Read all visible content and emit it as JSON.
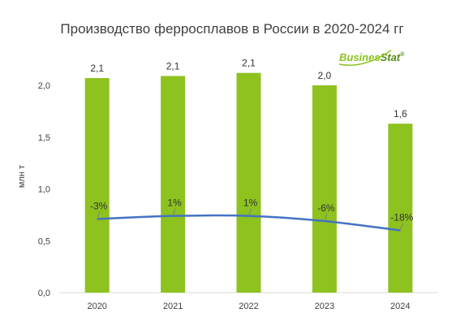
{
  "chart_data": {
    "type": "bar",
    "title": "Производство ферросплавов в России в 2020-2024 гг",
    "ylabel": "млн т",
    "xlabel": "",
    "ylim": [
      0,
      2.4
    ],
    "yticks": [
      "0,0",
      "0,5",
      "1,0",
      "1,5",
      "2,0"
    ],
    "categories": [
      "2020",
      "2021",
      "2022",
      "2023",
      "2024"
    ],
    "values": [
      2.07,
      2.09,
      2.12,
      2.0,
      1.63
    ],
    "value_labels": [
      "2,1",
      "2,1",
      "2,1",
      "2,0",
      "1,6"
    ],
    "growth_line": {
      "values": [
        0.71,
        0.74,
        0.74,
        0.69,
        0.6
      ],
      "labels": [
        "-3%",
        "1%",
        "1%",
        "-6%",
        "-18%"
      ]
    },
    "grid": false,
    "legend": "none"
  },
  "brand": {
    "text_main": "Busines",
    "text_accent": "Stat",
    "mark": "®"
  },
  "colors": {
    "bar": "#8dc21f",
    "line": "#4472c4",
    "brand_main": "#8dc21f",
    "brand_accent": "#5a8a1a",
    "axis": "#d9d9d9"
  }
}
